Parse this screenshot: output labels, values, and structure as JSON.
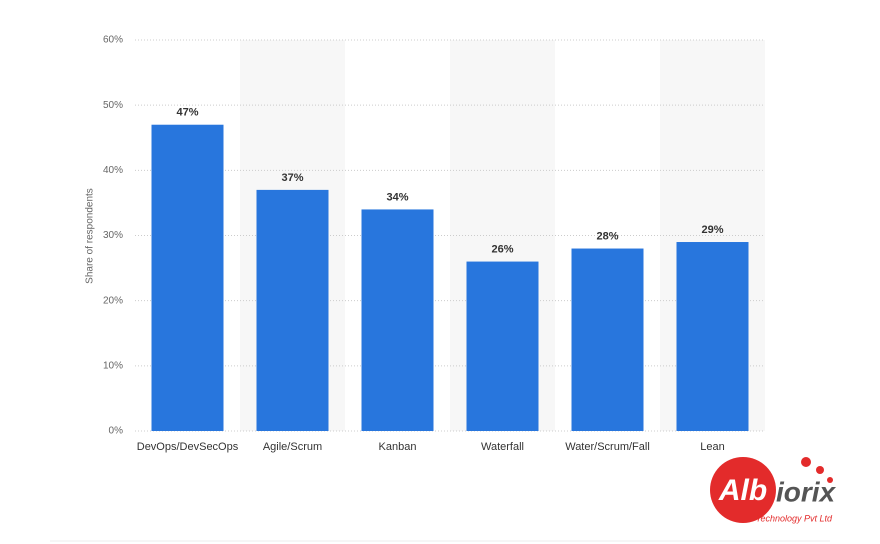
{
  "chart_data": {
    "type": "bar",
    "y_label": "Share of respondents",
    "categories": [
      "DevOps/DevSecOps",
      "Agile/Scrum",
      "Kanban",
      "Waterfall",
      "Water/Scrum/Fall",
      "Lean"
    ],
    "values": [
      47,
      37,
      34,
      26,
      28,
      29
    ],
    "value_labels": [
      "47%",
      "37%",
      "34%",
      "26%",
      "28%",
      "29%"
    ],
    "color": "#2876dd",
    "ylim": [
      0,
      60
    ],
    "yticks": [
      {
        "value": 0,
        "label": "0%"
      },
      {
        "value": 10,
        "label": "10%"
      },
      {
        "value": 20,
        "label": "20%"
      },
      {
        "value": 30,
        "label": "30%"
      },
      {
        "value": 40,
        "label": "40%"
      },
      {
        "value": 50,
        "label": "50%"
      },
      {
        "value": 60,
        "label": "60%"
      }
    ],
    "grid": true
  },
  "logo": {
    "mark": "Alb",
    "text": "iorix",
    "tagline": "Technology Pvt Ltd"
  }
}
